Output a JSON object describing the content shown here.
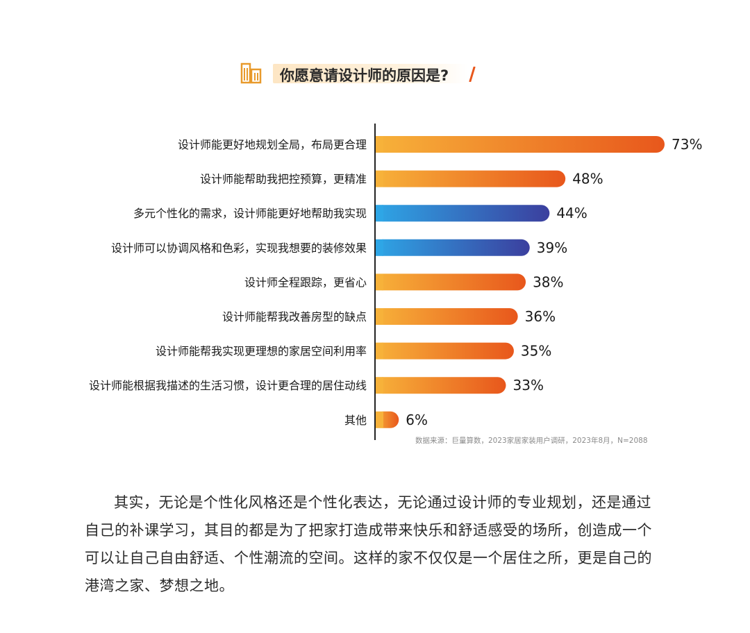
{
  "title": "你愿意请设计师的原因是?",
  "chart_data": {
    "type": "bar",
    "orientation": "horizontal",
    "title": "你愿意请设计师的原因是?",
    "categories": [
      "设计师能更好地规划全局，布局更合理",
      "设计师能帮助我把控预算，更精准",
      "多元个性化的需求，设计师能更好地帮助我实现",
      "设计师可以协调风格和色彩，实现我想要的装修效果",
      "设计师全程跟踪，更省心",
      "设计师能帮我改善房型的缺点",
      "设计师能帮我实现更理想的家居空间利用率",
      "设计师能根据我描述的生活习惯，设计更合理的居住动线",
      "其他"
    ],
    "values": [
      73,
      48,
      44,
      39,
      38,
      36,
      35,
      33,
      6
    ],
    "value_labels": [
      "73%",
      "48%",
      "44%",
      "39%",
      "38%",
      "36%",
      "35%",
      "33%",
      "6%"
    ],
    "bar_colors": [
      "orange",
      "orange",
      "blue",
      "blue",
      "orange",
      "orange",
      "orange",
      "orange",
      "orange"
    ],
    "colors": {
      "orange_start": "#f7b23a",
      "orange_end": "#e8571c",
      "blue_start": "#2ea6e6",
      "blue_end": "#3b3f9e"
    },
    "xlim": [
      0,
      75
    ],
    "grid": false
  },
  "source": "数据来源：巨量算数，2023家居家装用户调研，2023年8月，N=2088",
  "paragraph": "其实，无论是个性化风格还是个性化表达，无论通过设计师的专业规划，还是通过自己的补课学习，其目的都是为了把家打造成带来快乐和舒适感受的场所，创造成一个可以让自己自由舒适、个性潮流的空间。这样的家不仅仅是一个居住之所，更是自己的港湾之家、梦想之地。"
}
